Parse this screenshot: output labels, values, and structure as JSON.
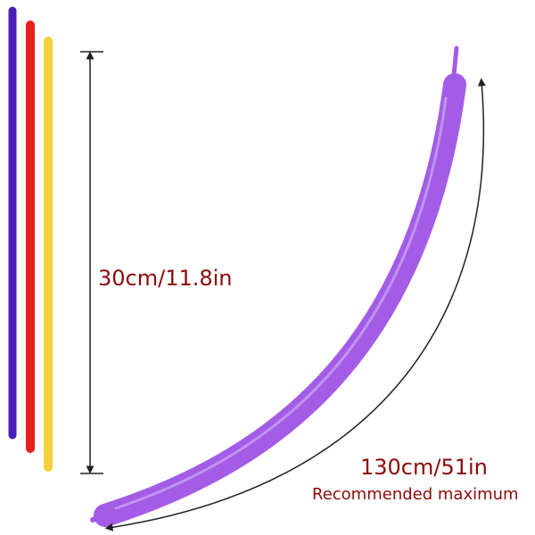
{
  "labels": {
    "uninflated": "30cm/11.8in",
    "inflated": "130cm/51in",
    "note": "Recommended maximum"
  }
}
